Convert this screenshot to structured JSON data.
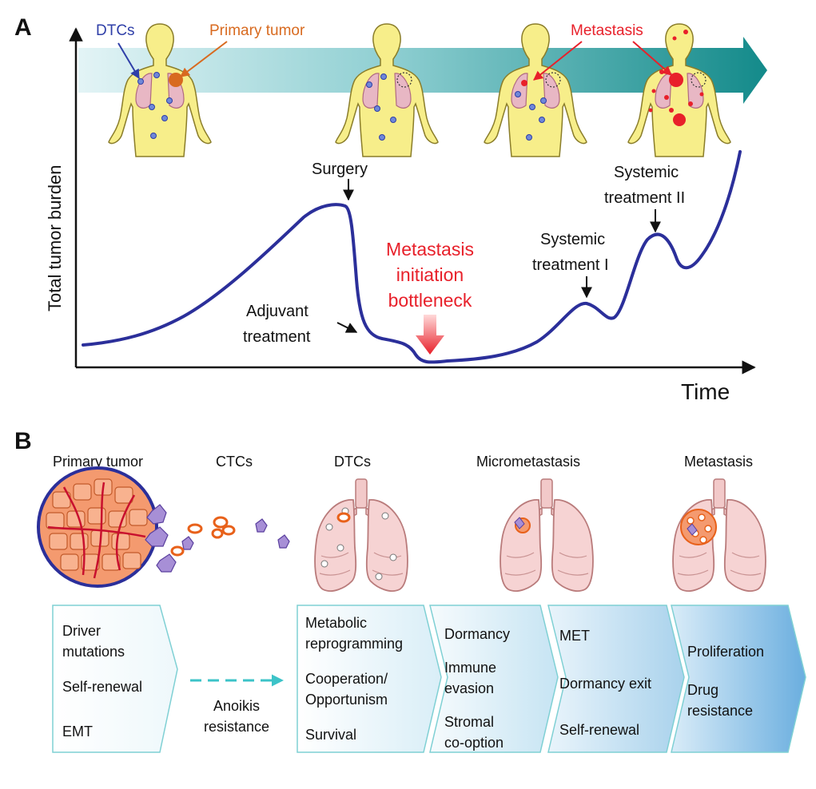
{
  "panel_a": {
    "letter": "A",
    "labels": {
      "dtcs": "DTCs",
      "primary_tumor": "Primary tumor",
      "metastasis": "Metastasis",
      "ylabel": "Total tumor burden",
      "xlabel": "Time",
      "surgery": "Surgery",
      "adjuvant_1": "Adjuvant",
      "adjuvant_2": "treatment",
      "bottleneck_1": "Metastasis",
      "bottleneck_2": "initiation",
      "bottleneck_3": "bottleneck",
      "sys1_1": "Systemic",
      "sys1_2": "treatment I",
      "sys2_1": "Systemic",
      "sys2_2": "treatment II"
    }
  },
  "panel_b": {
    "letter": "B",
    "stages": [
      "Primary tumor",
      "CTCs",
      "DTCs",
      "Micrometastasis",
      "Metastasis"
    ],
    "box1": [
      "Driver",
      "mutations",
      "Self-renewal",
      "EMT"
    ],
    "anoikis": [
      "Anoikis",
      "resistance"
    ],
    "box2": [
      "Metabolic",
      "reprogramming",
      "Cooperation/",
      "Opportunism",
      "Survival"
    ],
    "box3": [
      "Dormancy",
      "Immune",
      "evasion",
      "Stromal",
      "co-option"
    ],
    "box4": [
      "MET",
      "Dormancy exit",
      "Self-renewal"
    ],
    "box5": [
      "Proliferation",
      "Drug",
      "resistance"
    ]
  },
  "colors": {
    "curve": "#2b2f9a",
    "red_label": "#e8202a",
    "orange_label": "#d86a1f",
    "dtc_blue": "#2f3fa8",
    "body": "#f7ee8a",
    "teal": "#1d8f8f",
    "lung": "#f2c9c9",
    "tumor_cell": "#f49a6f"
  }
}
